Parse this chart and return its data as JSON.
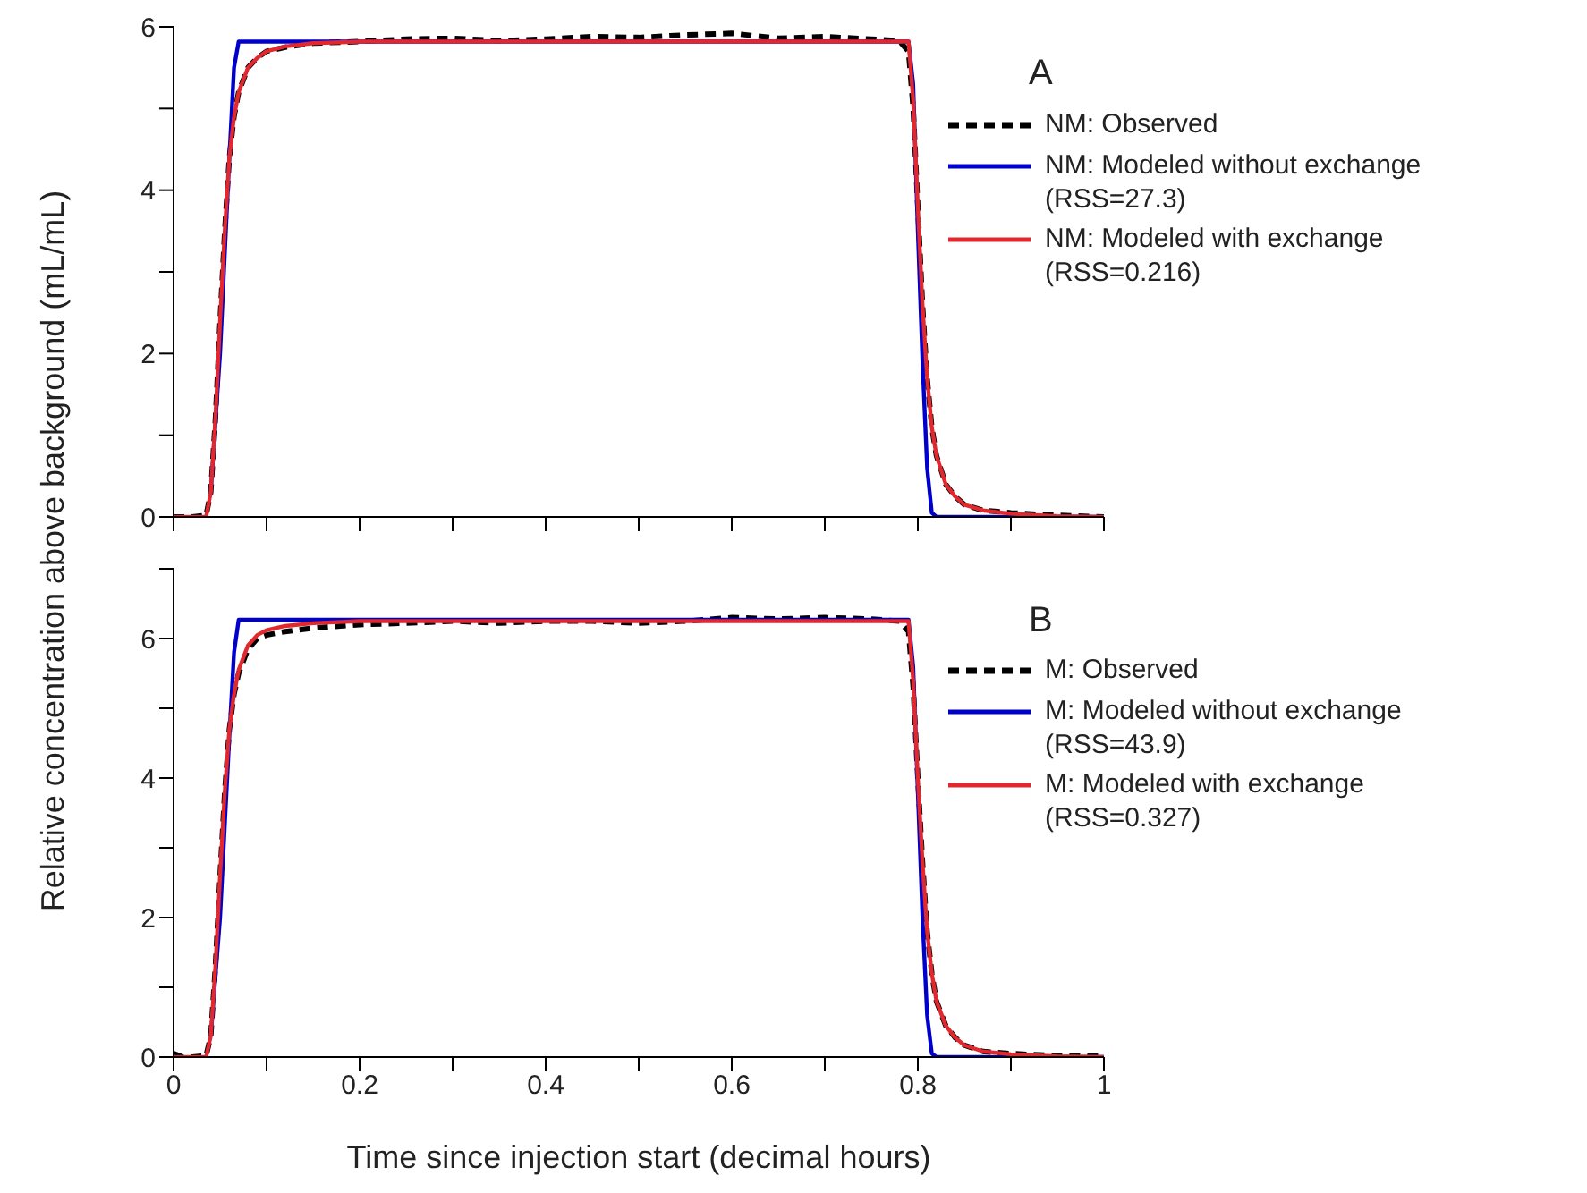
{
  "chart_data": [
    {
      "type": "line",
      "title": "A",
      "ylabel": "Relative concentration above background (mL/mL)",
      "xlim": [
        0,
        1
      ],
      "ylim": [
        0,
        6
      ],
      "xticks": [
        {
          "value": 0,
          "label": null
        },
        {
          "value": 0.1,
          "label": null
        },
        {
          "value": 0.2,
          "label": null
        },
        {
          "value": 0.3,
          "label": null
        },
        {
          "value": 0.4,
          "label": null
        },
        {
          "value": 0.5,
          "label": null
        },
        {
          "value": 0.6,
          "label": null
        },
        {
          "value": 0.7,
          "label": null
        },
        {
          "value": 0.8,
          "label": null
        },
        {
          "value": 0.9,
          "label": null
        },
        {
          "value": 1,
          "label": null
        }
      ],
      "yticks": [
        0,
        {
          "value": 1,
          "label": null
        },
        2,
        {
          "value": 3,
          "label": null
        },
        4,
        {
          "value": 5,
          "label": null
        },
        6
      ],
      "tick_labels": "y",
      "legend": "right",
      "marker": "none",
      "series": [
        {
          "name": "NM: Observed",
          "color": "#000000",
          "line_style": "dashed",
          "x": [
            0,
            0.02,
            0.035,
            0.04,
            0.045,
            0.05,
            0.055,
            0.06,
            0.065,
            0.07,
            0.08,
            0.09,
            0.1,
            0.12,
            0.15,
            0.2,
            0.25,
            0.3,
            0.35,
            0.4,
            0.45,
            0.5,
            0.55,
            0.6,
            0.65,
            0.7,
            0.75,
            0.78,
            0.79,
            0.795,
            0.8,
            0.805,
            0.81,
            0.815,
            0.82,
            0.83,
            0.84,
            0.85,
            0.87,
            0.9,
            0.95,
            1
          ],
          "values": [
            0,
            0,
            0.02,
            0.3,
            1.2,
            2.4,
            3.5,
            4.4,
            4.9,
            5.2,
            5.5,
            5.62,
            5.7,
            5.75,
            5.8,
            5.82,
            5.85,
            5.86,
            5.83,
            5.85,
            5.88,
            5.87,
            5.9,
            5.92,
            5.86,
            5.88,
            5.85,
            5.83,
            5.7,
            5,
            3.8,
            2.6,
            1.7,
            1.1,
            0.75,
            0.4,
            0.25,
            0.15,
            0.08,
            0.05,
            0.02,
            0
          ]
        },
        {
          "name": "NM: Modeled without exchange (RSS=27.3)",
          "color": "#0000cc",
          "line_style": "solid",
          "x": [
            0.04,
            0.05,
            0.06,
            0.065,
            0.07,
            0.79,
            0.795,
            0.8,
            0.805,
            0.81,
            0.815,
            0.82,
            1
          ],
          "values": [
            0.3,
            2,
            4.4,
            5.5,
            5.82,
            5.82,
            5.3,
            3.5,
            1.9,
            0.6,
            0.05,
            0,
            0
          ]
        },
        {
          "name": "NM: Modeled with exchange (RSS=0.216)",
          "color": "#e0282e",
          "line_style": "solid",
          "x": [
            0,
            0.035,
            0.04,
            0.045,
            0.05,
            0.055,
            0.06,
            0.065,
            0.07,
            0.08,
            0.09,
            0.1,
            0.12,
            0.15,
            0.2,
            0.79,
            0.795,
            0.8,
            0.805,
            0.81,
            0.815,
            0.82,
            0.83,
            0.84,
            0.85,
            0.87,
            0.9,
            0.95,
            1
          ],
          "values": [
            0,
            0,
            0.3,
            1.2,
            2.4,
            3.5,
            4.4,
            4.9,
            5.2,
            5.5,
            5.62,
            5.7,
            5.76,
            5.8,
            5.82,
            5.82,
            5.1,
            3.8,
            2.6,
            1.7,
            1.1,
            0.75,
            0.4,
            0.25,
            0.15,
            0.08,
            0.04,
            0.01,
            0
          ]
        }
      ]
    },
    {
      "type": "line",
      "title": "B",
      "xlabel": "Time since injection start (decimal hours)",
      "xlim": [
        0,
        1
      ],
      "ylim": [
        0,
        7
      ],
      "xticks": [
        0,
        {
          "value": 0.1,
          "label": null
        },
        0.2,
        {
          "value": 0.3,
          "label": null
        },
        0.4,
        {
          "value": 0.5,
          "label": null
        },
        0.6,
        {
          "value": 0.7,
          "label": null
        },
        0.8,
        {
          "value": 0.9,
          "label": null
        },
        1
      ],
      "yticks": [
        0,
        {
          "value": 1,
          "label": null
        },
        2,
        {
          "value": 3,
          "label": null
        },
        4,
        {
          "value": 5,
          "label": null
        },
        6,
        {
          "value": 7,
          "label": null
        }
      ],
      "legend": "right",
      "marker": "none",
      "series": [
        {
          "name": "M: Observed",
          "color": "#000000",
          "line_style": "dashed",
          "x": [
            0,
            0.01,
            0.02,
            0.035,
            0.04,
            0.045,
            0.05,
            0.055,
            0.06,
            0.065,
            0.07,
            0.08,
            0.09,
            0.1,
            0.12,
            0.15,
            0.2,
            0.25,
            0.3,
            0.35,
            0.4,
            0.45,
            0.5,
            0.55,
            0.6,
            0.65,
            0.7,
            0.75,
            0.78,
            0.79,
            0.795,
            0.8,
            0.805,
            0.81,
            0.815,
            0.82,
            0.83,
            0.84,
            0.85,
            0.87,
            0.9,
            0.95,
            1
          ],
          "values": [
            0.05,
            0,
            0,
            0.02,
            0.3,
            1.3,
            2.6,
            3.8,
            4.7,
            5.2,
            5.5,
            5.85,
            6,
            6.05,
            6.1,
            6.15,
            6.2,
            6.22,
            6.25,
            6.22,
            6.25,
            6.25,
            6.22,
            6.25,
            6.3,
            6.28,
            6.3,
            6.28,
            6.25,
            6.1,
            5.3,
            4,
            2.8,
            1.8,
            1.2,
            0.8,
            0.45,
            0.28,
            0.17,
            0.08,
            0.05,
            0.02,
            0.02
          ]
        },
        {
          "name": "M: Modeled without exchange (RSS=43.9)",
          "color": "#0000cc",
          "line_style": "solid",
          "x": [
            0.04,
            0.05,
            0.06,
            0.065,
            0.07,
            0.79,
            0.795,
            0.8,
            0.805,
            0.81,
            0.815,
            0.82,
            1
          ],
          "values": [
            0.3,
            2,
            4.6,
            5.8,
            6.27,
            6.27,
            5.6,
            3.8,
            2,
            0.6,
            0.05,
            0,
            0
          ]
        },
        {
          "name": "M: Modeled with exchange (RSS=0.327)",
          "color": "#e0282e",
          "line_style": "solid",
          "x": [
            0,
            0.035,
            0.04,
            0.045,
            0.05,
            0.055,
            0.06,
            0.065,
            0.07,
            0.08,
            0.09,
            0.1,
            0.12,
            0.15,
            0.2,
            0.79,
            0.795,
            0.8,
            0.805,
            0.81,
            0.815,
            0.82,
            0.83,
            0.84,
            0.85,
            0.87,
            0.9,
            0.95,
            1
          ],
          "values": [
            0,
            0,
            0.3,
            1.3,
            2.6,
            3.8,
            4.7,
            5.2,
            5.55,
            5.9,
            6.05,
            6.12,
            6.18,
            6.22,
            6.25,
            6.25,
            5.4,
            4,
            2.8,
            1.8,
            1.2,
            0.8,
            0.45,
            0.28,
            0.17,
            0.08,
            0.04,
            0.01,
            0
          ]
        }
      ]
    }
  ]
}
